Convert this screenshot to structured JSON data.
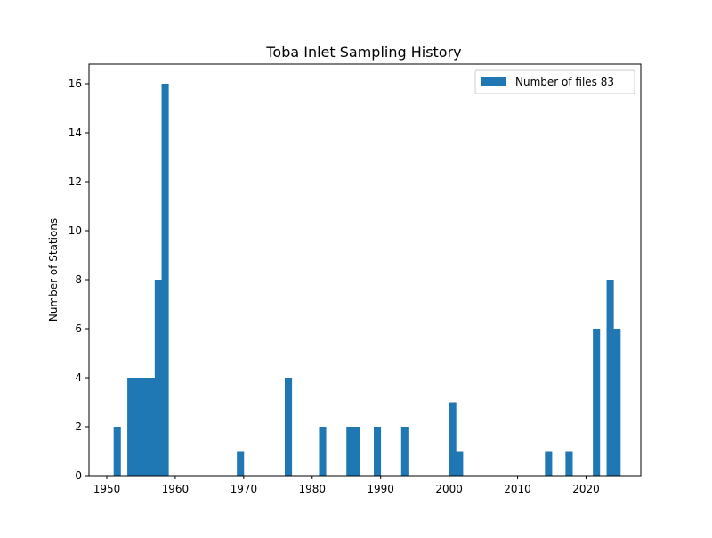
{
  "chart_data": {
    "type": "bar",
    "title": "Toba Inlet Sampling History",
    "xlabel": "",
    "ylabel": "Number of Stations",
    "bin_width": 1,
    "x": [
      1951,
      1953,
      1954,
      1955,
      1956,
      1957,
      1958,
      1969,
      1976,
      1981,
      1985,
      1986,
      1989,
      1993,
      2000,
      2001,
      2014,
      2017,
      2021,
      2023,
      2024
    ],
    "series": [
      {
        "name": "Number of files 83",
        "color": "#1f77b4",
        "values": [
          2,
          4,
          4,
          4,
          4,
          8,
          16,
          1,
          4,
          2,
          2,
          2,
          2,
          2,
          3,
          1,
          1,
          1,
          6,
          8,
          6
        ]
      }
    ],
    "xlim": [
      1947.4,
      2028.0
    ],
    "ylim": [
      0,
      16.8
    ],
    "xticks": [
      1950,
      1960,
      1970,
      1980,
      1990,
      2000,
      2010,
      2020
    ],
    "yticks": [
      0,
      2,
      4,
      6,
      8,
      10,
      12,
      14,
      16
    ],
    "grid": false,
    "legend_position": "top-right"
  }
}
